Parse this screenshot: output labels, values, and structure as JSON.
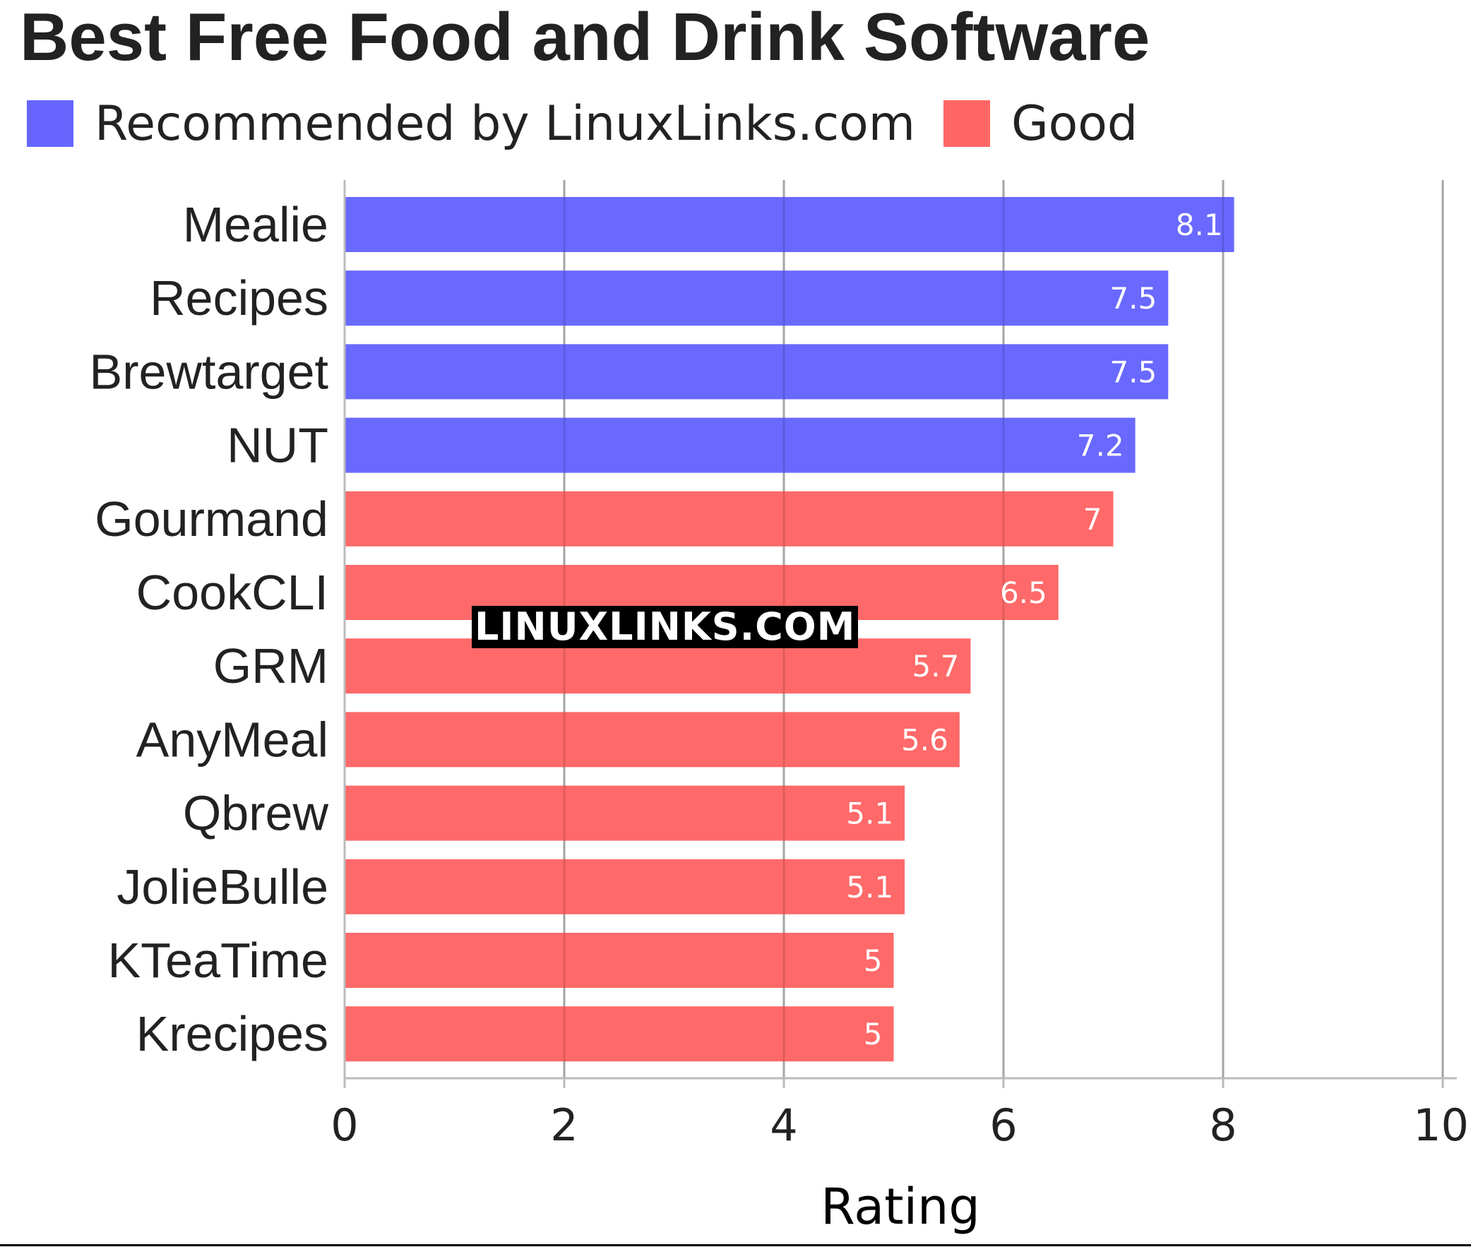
{
  "chart_data": {
    "type": "bar",
    "orientation": "horizontal",
    "title": "Best Free Food and Drink Software",
    "xlabel": "Rating",
    "xlim": [
      0,
      10
    ],
    "xticks": [
      0,
      2,
      4,
      6,
      8,
      10
    ],
    "grid": true,
    "legend_position": "top-left",
    "legend": [
      {
        "label": "Recommended by LinuxLinks.com",
        "color": "#6666ff"
      },
      {
        "label": "Good",
        "color": "#ff6666"
      }
    ],
    "categories": [
      "Mealie",
      "Recipes",
      "Brewtarget",
      "NUT",
      "Gourmand",
      "CookCLI",
      "GRM",
      "AnyMeal",
      "Qbrew",
      "JolieBulle",
      "KTeaTime",
      "Krecipes"
    ],
    "values": [
      8.1,
      7.5,
      7.5,
      7.2,
      7,
      6.5,
      5.7,
      5.6,
      5.1,
      5.1,
      5,
      5
    ],
    "value_labels": [
      "8.1",
      "7.5",
      "7.5",
      "7.2",
      "7",
      "6.5",
      "5.7",
      "5.6",
      "5.1",
      "5.1",
      "5",
      "5"
    ],
    "groups": [
      0,
      0,
      0,
      0,
      1,
      1,
      1,
      1,
      1,
      1,
      1,
      1
    ]
  },
  "watermark": "LINUXLINKS.COM"
}
